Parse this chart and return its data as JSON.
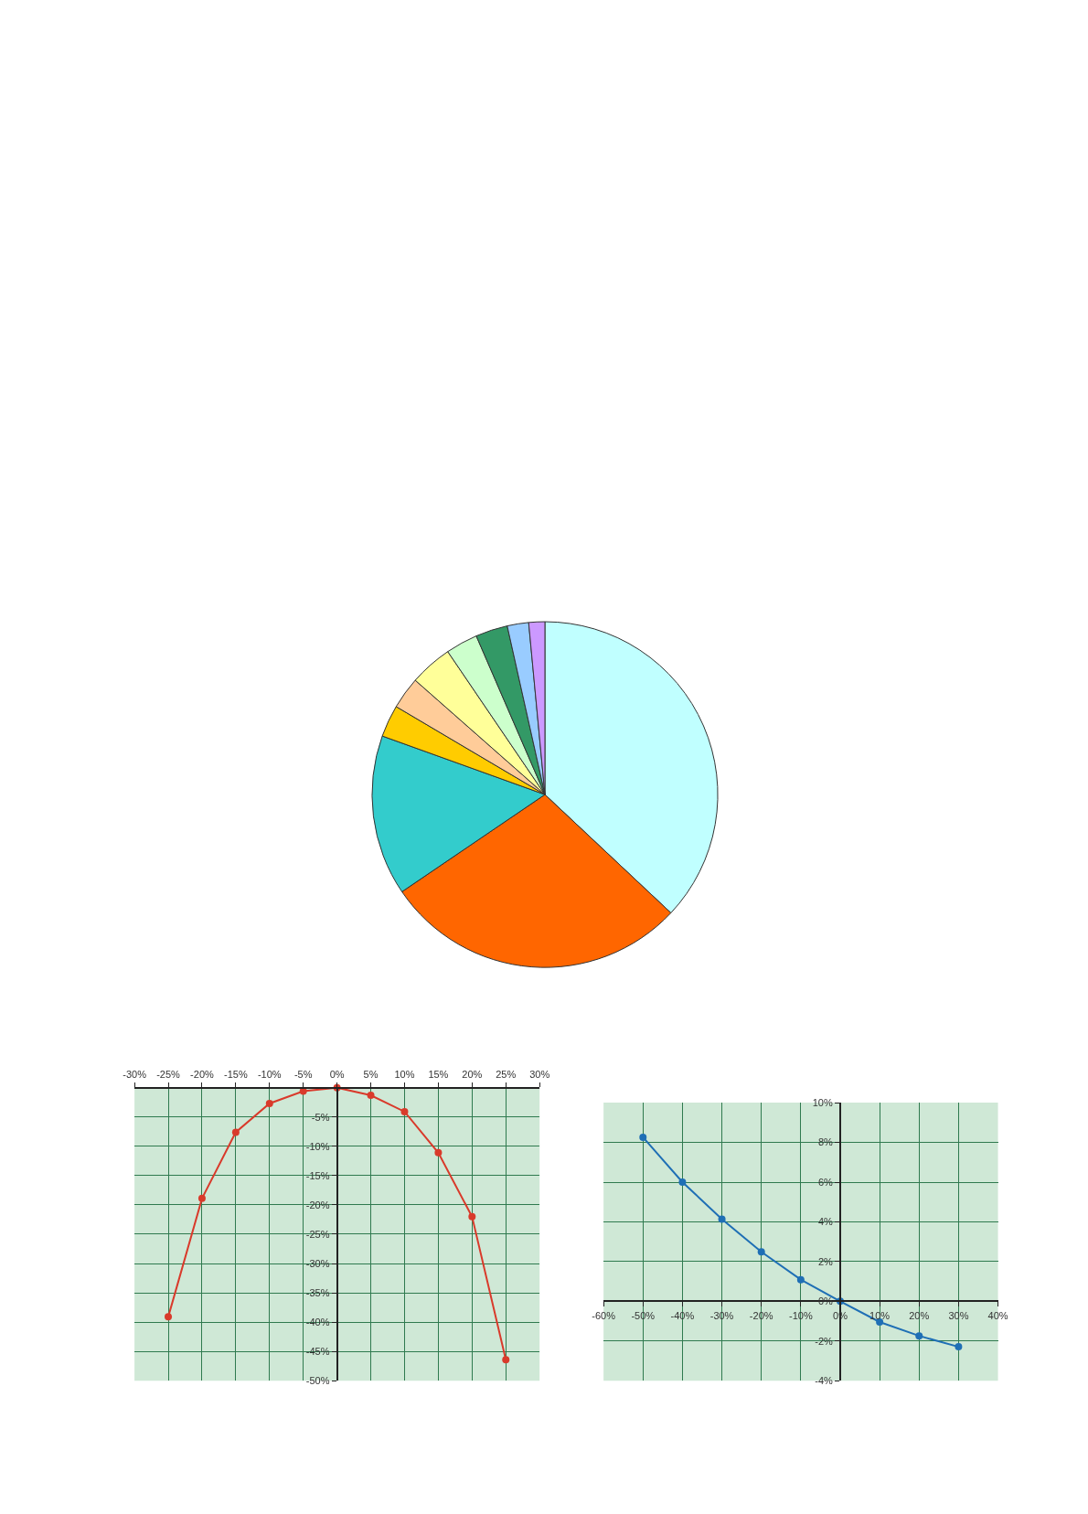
{
  "chart_data": [
    {
      "type": "pie",
      "categories": [
        null,
        null,
        null,
        null,
        null,
        null,
        null,
        null,
        null,
        null
      ],
      "values": [
        37,
        28.5,
        15,
        3,
        3,
        4,
        3,
        3,
        2,
        1.5
      ],
      "colors": [
        "#c0ffff",
        "#ff6600",
        "#33cccc",
        "#ffcc00",
        "#ffcc99",
        "#ffff99",
        "#ccffcc",
        "#339966",
        "#99ccff",
        "#cc99ff"
      ]
    },
    {
      "type": "line",
      "x": [
        -25,
        -20,
        -15,
        -10,
        -5,
        0,
        5,
        10,
        15,
        20,
        25
      ],
      "series": [
        {
          "color": "#d93a2b",
          "values": [
            -39.1,
            -18.9,
            -7.6,
            -2.7,
            -0.6,
            0,
            -1.3,
            -4.1,
            -11.1,
            -22,
            -46.4
          ]
        }
      ],
      "xlim": [
        -30,
        30
      ],
      "ylim": [
        -50,
        0
      ],
      "xticks": [
        {
          "value": -30,
          "label": "-30%"
        },
        {
          "value": -25,
          "label": "-25%"
        },
        {
          "value": -20,
          "label": "-20%"
        },
        {
          "value": -15,
          "label": "-15%"
        },
        {
          "value": -10,
          "label": "-10%"
        },
        {
          "value": -5,
          "label": "-5%"
        },
        {
          "value": 0,
          "label": "0%"
        },
        {
          "value": 5,
          "label": "5%"
        },
        {
          "value": 10,
          "label": "10%"
        },
        {
          "value": 15,
          "label": "15%"
        },
        {
          "value": 20,
          "label": "20%"
        },
        {
          "value": 25,
          "label": "25%"
        },
        {
          "value": 30,
          "label": "30%"
        }
      ],
      "yticks": [
        {
          "value": 0,
          "label": null
        },
        {
          "value": -5,
          "label": "-5%"
        },
        {
          "value": -10,
          "label": "-10%"
        },
        {
          "value": -15,
          "label": "-15%"
        },
        {
          "value": -20,
          "label": "-20%"
        },
        {
          "value": -25,
          "label": "-25%"
        },
        {
          "value": -30,
          "label": "-30%"
        },
        {
          "value": -35,
          "label": "-35%"
        },
        {
          "value": -40,
          "label": "-40%"
        },
        {
          "value": -45,
          "label": "-45%"
        },
        {
          "value": -50,
          "label": "-50%"
        }
      ],
      "grid": true,
      "marker": "circle",
      "line_style": "solid"
    },
    {
      "type": "line",
      "x": [
        -50,
        -40,
        -30,
        -20,
        -10,
        0,
        10,
        20,
        30
      ],
      "series": [
        {
          "color": "#1f6fb5",
          "values": [
            8.26,
            6.0,
            4.14,
            2.49,
            1.09,
            0,
            -1.04,
            -1.74,
            -2.29
          ]
        }
      ],
      "xlim": [
        -60,
        40
      ],
      "ylim": [
        -4,
        10
      ],
      "xticks": [
        {
          "value": -60,
          "label": "-60%"
        },
        {
          "value": -50,
          "label": "-50%"
        },
        {
          "value": -40,
          "label": "-40%"
        },
        {
          "value": -30,
          "label": "-30%"
        },
        {
          "value": -20,
          "label": "-20%"
        },
        {
          "value": -10,
          "label": "-10%"
        },
        {
          "value": 0,
          "label": "0%"
        },
        {
          "value": 10,
          "label": "10%"
        },
        {
          "value": 20,
          "label": "20%"
        },
        {
          "value": 30,
          "label": "30%"
        },
        {
          "value": 40,
          "label": "40%"
        }
      ],
      "yticks": [
        {
          "value": -4,
          "label": "-4%"
        },
        {
          "value": -2,
          "label": "-2%"
        },
        {
          "value": 0,
          "label": "0%"
        },
        {
          "value": 2,
          "label": "2%"
        },
        {
          "value": 4,
          "label": "4%"
        },
        {
          "value": 6,
          "label": "6%"
        },
        {
          "value": 8,
          "label": "8%"
        },
        {
          "value": 10,
          "label": "10%"
        }
      ],
      "grid": true,
      "marker": "circle",
      "line_style": "solid"
    }
  ]
}
